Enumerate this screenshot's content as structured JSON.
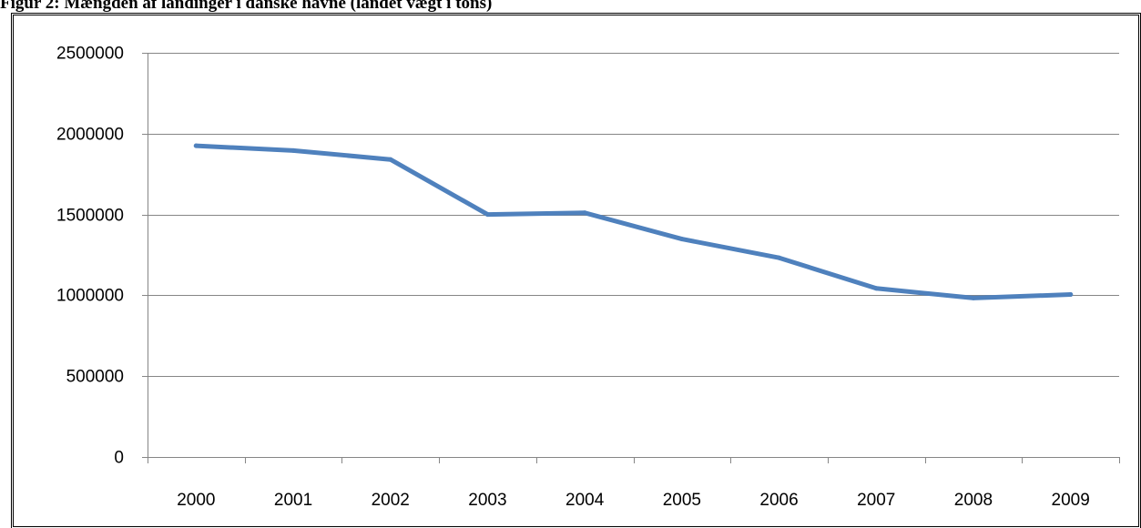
{
  "title": "Figur 2: Mængden af landinger i danske havne (landet vægt i tons)",
  "chart_data": {
    "type": "line",
    "title": "Figur 2: Mængden af landinger i danske havne (landet vægt i tons)",
    "categories": [
      "2000",
      "2001",
      "2002",
      "2003",
      "2004",
      "2005",
      "2006",
      "2007",
      "2008",
      "2009"
    ],
    "series": [
      {
        "values": [
          1925000,
          1895000,
          1840000,
          1500000,
          1510000,
          1348000,
          1232000,
          1043000,
          983000,
          1005000
        ],
        "color": "#4F81BD"
      }
    ],
    "ylim": [
      0,
      2500000
    ],
    "yticks": [
      "0",
      "500000",
      "1000000",
      "1500000",
      "2000000",
      "2500000"
    ],
    "ytick_values": [
      0,
      500000,
      1000000,
      1500000,
      2000000,
      2500000
    ],
    "grid": true,
    "legend": "none",
    "xlabel": "",
    "ylabel": ""
  }
}
